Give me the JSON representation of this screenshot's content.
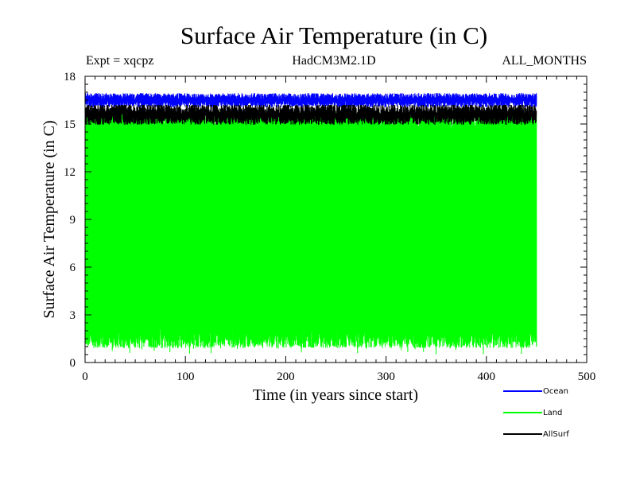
{
  "chart_data": {
    "type": "line",
    "title": "Surface Air Temperature (in C)",
    "subtitle_left": "Expt = xqcpz",
    "subtitle_center": "HadCM3M2.1D",
    "subtitle_right": "ALL_MONTHS",
    "xlabel": "Time (in years since start)",
    "ylabel": "Surface Air Temperature (in C)",
    "xlim": [
      0,
      500
    ],
    "ylim": [
      0,
      18
    ],
    "xticks": [
      0,
      100,
      200,
      300,
      400,
      500
    ],
    "yticks": [
      0,
      3,
      6,
      9,
      12,
      15,
      18
    ],
    "series": [
      {
        "name": "Ocean",
        "color": "#0000ff",
        "x_range": [
          0,
          450
        ],
        "min_approx": 16.0,
        "max_approx": 17.0,
        "mean": 16.5
      },
      {
        "name": "Land",
        "color": "#00ff00",
        "x_range": [
          0,
          450
        ],
        "min_approx": 0.5,
        "max_approx": 15.8,
        "mean_low": 1.6,
        "mean_high": 15.2
      },
      {
        "name": "AllSurf",
        "color": "#000000",
        "x_range": [
          0,
          450
        ],
        "min_approx": 14.8,
        "max_approx": 16.2,
        "mean": 15.6
      }
    ]
  }
}
